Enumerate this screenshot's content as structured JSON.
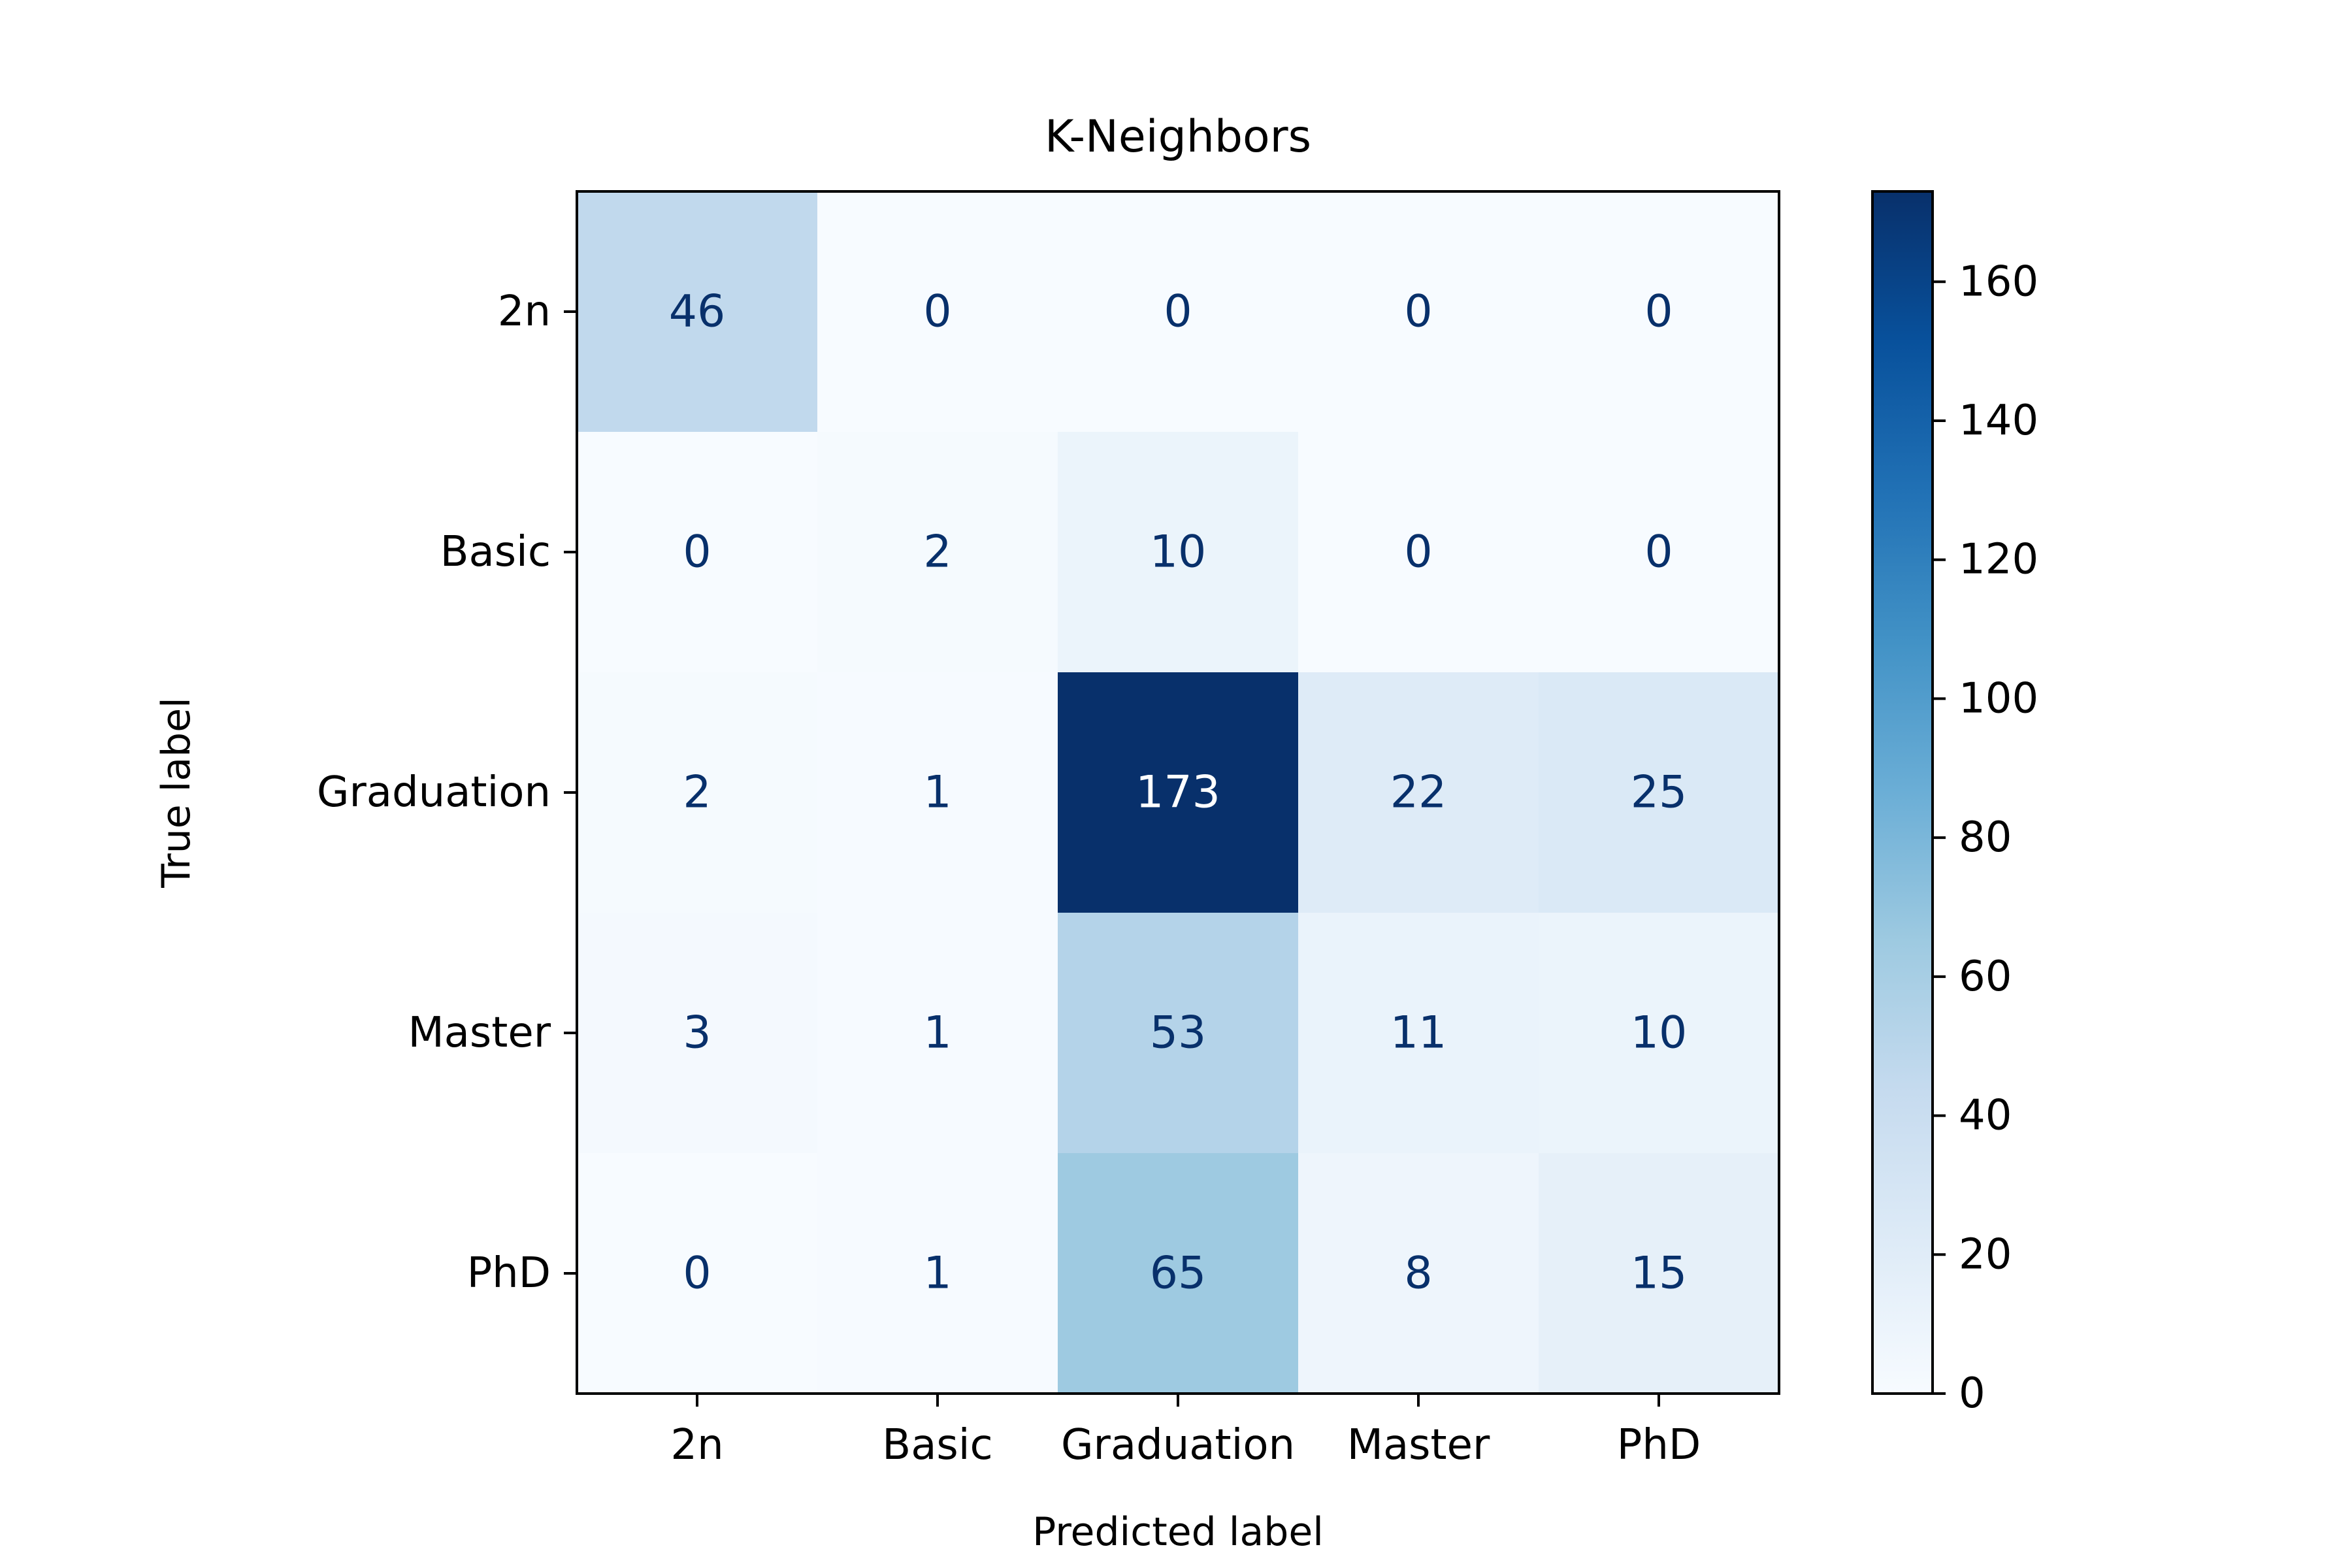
{
  "chart_data": {
    "type": "heatmap",
    "title": "K-Neighbors",
    "xlabel": "Predicted label",
    "ylabel": "True label",
    "x_categories": [
      "2n",
      "Basic",
      "Graduation",
      "Master",
      "PhD"
    ],
    "y_categories": [
      "2n",
      "Basic",
      "Graduation",
      "Master",
      "PhD"
    ],
    "values": [
      [
        46,
        0,
        0,
        0,
        0
      ],
      [
        0,
        2,
        10,
        0,
        0
      ],
      [
        2,
        1,
        173,
        22,
        25
      ],
      [
        3,
        1,
        53,
        11,
        10
      ],
      [
        0,
        1,
        65,
        8,
        15
      ]
    ],
    "colormap": "Blues",
    "colorbar": {
      "min": 0,
      "max": 173,
      "ticks": [
        0,
        20,
        40,
        60,
        80,
        100,
        120,
        140,
        160
      ]
    },
    "text_colors": {
      "light": "#ffffff",
      "dark": "#08306b"
    }
  }
}
